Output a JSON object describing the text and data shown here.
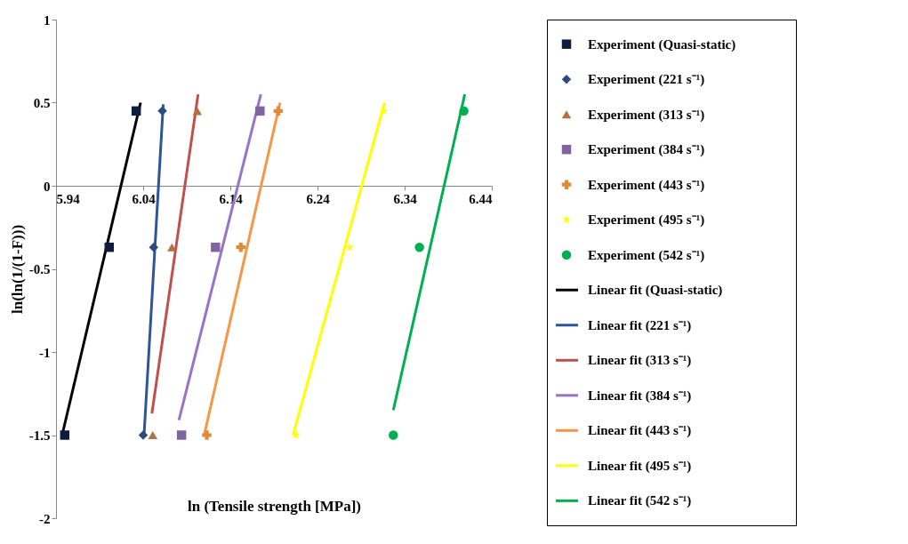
{
  "chart_data": {
    "type": "scatter",
    "xlabel": "ln (Tensile strength [MPa])",
    "ylabel": "ln(ln(1/(1-F)))",
    "xlim": [
      5.94,
      6.44
    ],
    "xticks": [
      5.94,
      6.04,
      6.14,
      6.24,
      6.34,
      6.44
    ],
    "ylim": [
      -2,
      1
    ],
    "yticks": [
      -2,
      -1.5,
      -1,
      -0.5,
      0,
      0.5,
      1
    ],
    "grid": false,
    "legend": "right",
    "line_style": "solid",
    "series": [
      {
        "name": "Experiment (Quasi-static)",
        "marker": "square",
        "color": "#0d1b3e",
        "x": [
          6.032,
          6.001,
          5.95
        ],
        "values": [
          0.45,
          -0.37,
          -1.5
        ]
      },
      {
        "name": "Experiment (221 s⁻¹)",
        "marker": "diamond",
        "color": "#2e4a7a",
        "x": [
          6.062,
          6.052,
          6.04
        ],
        "values": [
          0.45,
          -0.37,
          -1.5
        ]
      },
      {
        "name": "Experiment (313 s⁻¹)",
        "marker": "triangle",
        "color": "#b5713f",
        "x": [
          6.102,
          6.073,
          6.051
        ],
        "values": [
          0.45,
          -0.37,
          -1.5
        ]
      },
      {
        "name": "Experiment (384 s⁻¹)",
        "marker": "square",
        "color": "#8064a2",
        "x": [
          6.174,
          6.123,
          6.084
        ],
        "values": [
          0.45,
          -0.37,
          -1.5
        ]
      },
      {
        "name": "Experiment (443 s⁻¹)",
        "marker": "cross",
        "color": "#e08a3a",
        "x": [
          6.195,
          6.152,
          6.113
        ],
        "values": [
          0.45,
          -0.37,
          -1.5
        ]
      },
      {
        "name": "Experiment (495 s⁻¹)",
        "marker": "star",
        "color": "#ffff00",
        "x": [
          6.316,
          6.277,
          6.215
        ],
        "values": [
          0.45,
          -0.37,
          -1.5
        ]
      },
      {
        "name": "Experiment (542 s⁻¹)",
        "marker": "circle",
        "color": "#00b050",
        "x": [
          6.408,
          6.357,
          6.327
        ],
        "values": [
          0.45,
          -0.37,
          -1.5
        ]
      },
      {
        "name": "Linear fit (Quasi-static)",
        "type": "line",
        "color": "#000000",
        "x": [
          5.947,
          6.037
        ],
        "values": [
          -1.5,
          0.5
        ]
      },
      {
        "name": "Linear fit (221 s⁻¹)",
        "type": "line",
        "color": "#2e5597",
        "x": [
          6.041,
          6.063
        ],
        "values": [
          -1.5,
          0.49
        ]
      },
      {
        "name": "Linear fit (313 s⁻¹)",
        "type": "line",
        "color": "#c0504d",
        "x": [
          6.05,
          6.103
        ],
        "values": [
          -1.37,
          0.55
        ]
      },
      {
        "name": "Linear fit (384 s⁻¹)",
        "type": "line",
        "color": "#9b72c7",
        "x": [
          6.081,
          6.175
        ],
        "values": [
          -1.41,
          0.55
        ]
      },
      {
        "name": "Linear fit (443 s⁻¹)",
        "type": "line",
        "color": "#f79646",
        "x": [
          6.11,
          6.197
        ],
        "values": [
          -1.5,
          0.5
        ]
      },
      {
        "name": "Linear fit (495 s⁻¹)",
        "type": "line",
        "color": "#ffff00",
        "x": [
          6.212,
          6.317
        ],
        "values": [
          -1.5,
          0.5
        ]
      },
      {
        "name": "Linear fit (542 s⁻¹)",
        "type": "line",
        "color": "#00b050",
        "x": [
          6.327,
          6.409
        ],
        "values": [
          -1.35,
          0.55
        ]
      }
    ]
  }
}
